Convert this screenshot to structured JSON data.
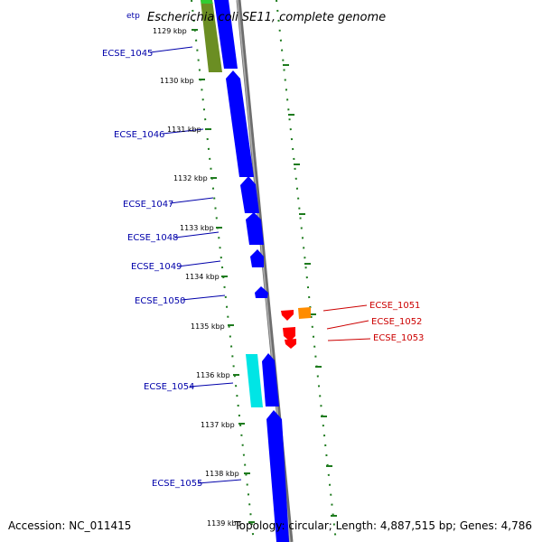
{
  "header": {
    "title": "Escherichia coli SE11, complete genome",
    "top_label": "etp"
  },
  "footer": {
    "accession": "Accession: NC_011415",
    "topology": "Topology: circular; Length: 4,887,515 bp; Genes: 4,786"
  },
  "colors": {
    "forward_gene": "#0000ff",
    "reverse_gene": "#ff0000",
    "rna_gene": "#ff8c00",
    "other_gene": "#00e5e5",
    "olive_gene": "#6b8e23",
    "green_gene": "#32cd32",
    "backbone": "#888888",
    "ticks": "#1e7b1e",
    "label_forward": "#0000aa",
    "label_reverse": "#cc0000"
  },
  "kbp_labels": [
    "1129 kbp",
    "1130 kbp",
    "1131 kbp",
    "1132 kbp",
    "1133 kbp",
    "1134 kbp",
    "1135 kbp",
    "1136 kbp",
    "1137 kbp",
    "1138 kbp",
    "1139 kbp"
  ],
  "left_genes": [
    "ECSE_1045",
    "ECSE_1046",
    "ECSE_1047",
    "ECSE_1048",
    "ECSE_1049",
    "ECSE_1050",
    "ECSE_1054",
    "ECSE_1055"
  ],
  "right_genes": [
    "ECSE_1051",
    "ECSE_1052",
    "ECSE_1053"
  ]
}
